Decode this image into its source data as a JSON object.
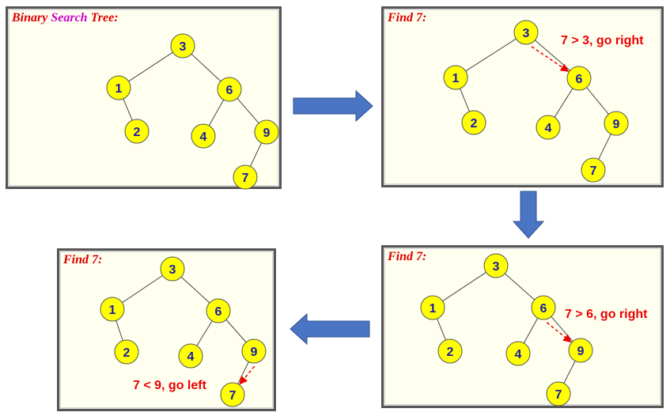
{
  "colors": {
    "node_fill": "#ffff00",
    "node_stroke": "#555555",
    "node_label": "#1a1aaa",
    "edge": "#444444",
    "annotation": "#ee0000",
    "title": "#dd0000",
    "title_highlight": "#cc00cc",
    "flow_arrow": "#4a74c4"
  },
  "tree": {
    "nodes": [
      {
        "id": "n3",
        "label": "3"
      },
      {
        "id": "n1",
        "label": "1"
      },
      {
        "id": "n6",
        "label": "6"
      },
      {
        "id": "n2",
        "label": "2"
      },
      {
        "id": "n4",
        "label": "4"
      },
      {
        "id": "n9",
        "label": "9"
      },
      {
        "id": "n7",
        "label": "7"
      }
    ],
    "edges": [
      [
        "n3",
        "n1"
      ],
      [
        "n3",
        "n6"
      ],
      [
        "n1",
        "n2"
      ],
      [
        "n6",
        "n4"
      ],
      [
        "n6",
        "n9"
      ],
      [
        "n9",
        "n7"
      ]
    ]
  },
  "panels": [
    {
      "id": "p1",
      "title_parts": [
        "Binary ",
        "Search",
        " Tree:"
      ],
      "step": null,
      "annotation": ""
    },
    {
      "id": "p2",
      "title_parts": [
        "Find 7:"
      ],
      "step": [
        "n3",
        "n6"
      ],
      "annotation": "7 > 3, go right"
    },
    {
      "id": "p3",
      "title_parts": [
        "Find 7:"
      ],
      "step": [
        "n6",
        "n9"
      ],
      "annotation": "7 > 6, go right"
    },
    {
      "id": "p4",
      "title_parts": [
        "Find 7:"
      ],
      "step": [
        "n9",
        "n7"
      ],
      "annotation": "7 < 9, go left"
    }
  ],
  "flow_arrows": [
    {
      "id": "a1",
      "direction": "right"
    },
    {
      "id": "a2",
      "direction": "down"
    },
    {
      "id": "a3",
      "direction": "left"
    }
  ]
}
